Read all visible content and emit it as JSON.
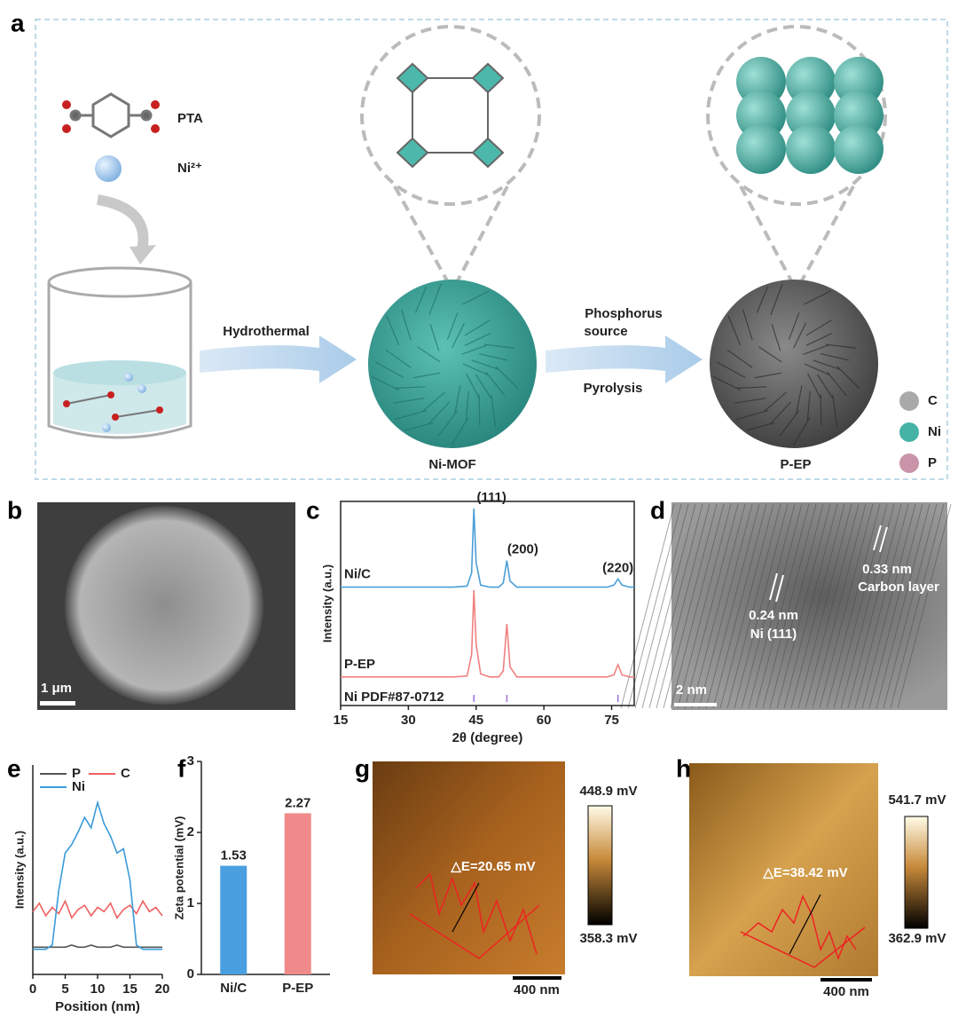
{
  "panel_labels": [
    "a",
    "b",
    "c",
    "d",
    "e",
    "f",
    "g",
    "h"
  ],
  "scheme": {
    "ligand": "PTA",
    "metal": "Ni²⁺",
    "step1": "Hydrothermal",
    "step2_line1": "Phosphorus",
    "step2_line2": "source",
    "step2_below": "Pyrolysis",
    "mof": "Ni-MOF",
    "product": "P-EP",
    "legend": [
      {
        "label": "C",
        "color": "#a9a9a9"
      },
      {
        "label": "Ni",
        "color": "#45b3a6"
      },
      {
        "label": "P",
        "color": "#c994a8"
      }
    ]
  },
  "sem": {
    "scale_bar": "1 μm"
  },
  "hrtem": {
    "spacing_1": "0.33 nm",
    "layer_1": "Carbon layer",
    "spacing_2": "0.24 nm",
    "layer_2": "Ni (111)",
    "scale_bar": "2 nm"
  },
  "kpfm_g": {
    "max": "448.9 mV",
    "min": "358.3 mV",
    "delta": "△E=20.65 mV",
    "scale_bar": "400 nm"
  },
  "kpfm_h": {
    "max": "541.7 mV",
    "min": "362.9 mV",
    "delta": "△E=38.42 mV",
    "scale_bar": "400 nm"
  },
  "chart_data": [
    {
      "type": "line",
      "x_label": "2θ (degree)",
      "y_label": "Intensity (a.u.)",
      "x": [
        15,
        20,
        25,
        30,
        35,
        40,
        43,
        44,
        44.5,
        45,
        46,
        48,
        50,
        51,
        51.8,
        52.5,
        54,
        58,
        62,
        66,
        70,
        74,
        75.5,
        76.4,
        77.3,
        79,
        80
      ],
      "series": [
        {
          "name": "Ni/C",
          "color": "#4a9fd8",
          "values": [
            58,
            58,
            58,
            58,
            58,
            58,
            58.5,
            65,
            96.5,
            70,
            59,
            58,
            58,
            60,
            71,
            61,
            58,
            58,
            58,
            58,
            58,
            58,
            59,
            62,
            59,
            58,
            58
          ]
        },
        {
          "name": "P-EP",
          "color": "#f08080",
          "values": [
            14,
            14,
            14,
            14,
            14,
            14,
            14.5,
            25,
            56.5,
            30,
            15.5,
            14,
            14,
            17,
            40,
            19,
            14,
            14,
            14,
            14,
            14,
            14,
            15,
            20,
            15,
            14,
            14
          ]
        }
      ],
      "reference": {
        "name": "Ni PDF#87-0712",
        "color": "#a070d8",
        "positions": [
          44.5,
          51.8,
          76.4
        ]
      },
      "annotations": [
        "(111)",
        "(200)",
        "(220)"
      ],
      "xlim": [
        15,
        80
      ],
      "xticks": [
        15,
        30,
        45,
        60,
        75
      ],
      "ylim": [
        0,
        100
      ]
    },
    {
      "type": "line",
      "x_label": "Position (nm)",
      "y_label": "Intensity (a.u.)",
      "x": [
        0,
        1,
        2,
        3,
        4,
        5,
        6,
        7,
        8,
        9,
        10,
        11,
        12,
        13,
        14,
        15,
        16,
        17,
        18,
        19,
        20
      ],
      "series": [
        {
          "name": "P",
          "color": "#555555",
          "values": [
            13,
            13,
            13,
            13,
            13,
            13,
            14,
            13,
            13,
            14,
            13,
            13,
            13,
            14,
            13,
            13,
            13,
            13,
            13,
            13,
            13
          ]
        },
        {
          "name": "C",
          "color": "#f06060",
          "values": [
            30,
            34,
            28,
            32,
            29,
            35,
            27,
            31,
            33,
            28,
            32,
            30,
            34,
            27,
            31,
            33,
            29,
            35,
            30,
            32,
            28
          ]
        },
        {
          "name": "Ni",
          "color": "#3a9ad9",
          "values": [
            12,
            12,
            12,
            14,
            40,
            58,
            62,
            68,
            75,
            70,
            82,
            72,
            66,
            58,
            60,
            45,
            14,
            12,
            12,
            12,
            12
          ]
        }
      ],
      "xlim": [
        0,
        20
      ],
      "xticks": [
        0,
        5,
        10,
        15,
        20
      ],
      "ylim": [
        0,
        100
      ]
    },
    {
      "type": "bar",
      "y_label": "Zeta potential (mV)",
      "categories": [
        "Ni/C",
        "P-EP"
      ],
      "values": [
        1.53,
        2.27
      ],
      "colors": [
        "#4a9fe0",
        "#f08a8a"
      ],
      "ylim": [
        0,
        3
      ],
      "yticks": [
        0,
        1,
        2,
        3
      ]
    }
  ]
}
